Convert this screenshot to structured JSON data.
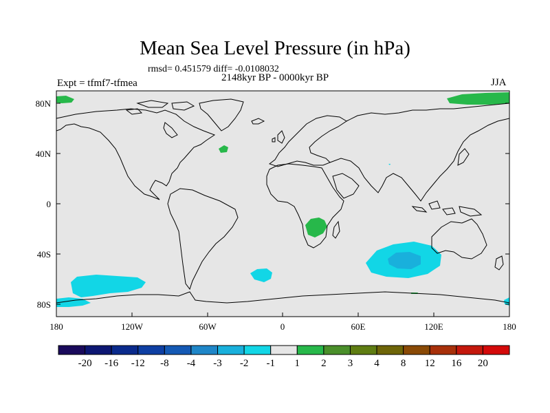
{
  "title": "Mean Sea Level Pressure (in hPa)",
  "stats": "rmsd= 0.451579 diff= -0.0108032",
  "period": "2148kyr BP - 0000kyr BP",
  "experiment": "Expt = tfmf7-tfmea",
  "season": "JJA",
  "lat_labels": [
    "80N",
    "40N",
    "0",
    "40S",
    "80S"
  ],
  "lon_labels": [
    "180",
    "120W",
    "60W",
    "0",
    "60E",
    "120E",
    "180"
  ],
  "colorbar": {
    "labels": [
      "-20",
      "-16",
      "-12",
      "-8",
      "-4",
      "-3",
      "-2",
      "-1",
      "1",
      "2",
      "3",
      "4",
      "8",
      "12",
      "16",
      "20"
    ],
    "colors": [
      "#1a0a5c",
      "#0d1773",
      "#0a2a8c",
      "#0e3fa3",
      "#1459b4",
      "#1f86c8",
      "#19b0dc",
      "#12d6e6",
      "#e6e6e6",
      "#27b84a",
      "#4a8f2a",
      "#5f7d12",
      "#6e6508",
      "#8a4a06",
      "#a8300a",
      "#c4180c",
      "#d40a0a"
    ]
  },
  "colors": {
    "background": "#e6e6e6",
    "positive_1_2": "#27b84a",
    "negative_1_2": "#12d6e6",
    "negative_2_3": "#19b0dc"
  }
}
